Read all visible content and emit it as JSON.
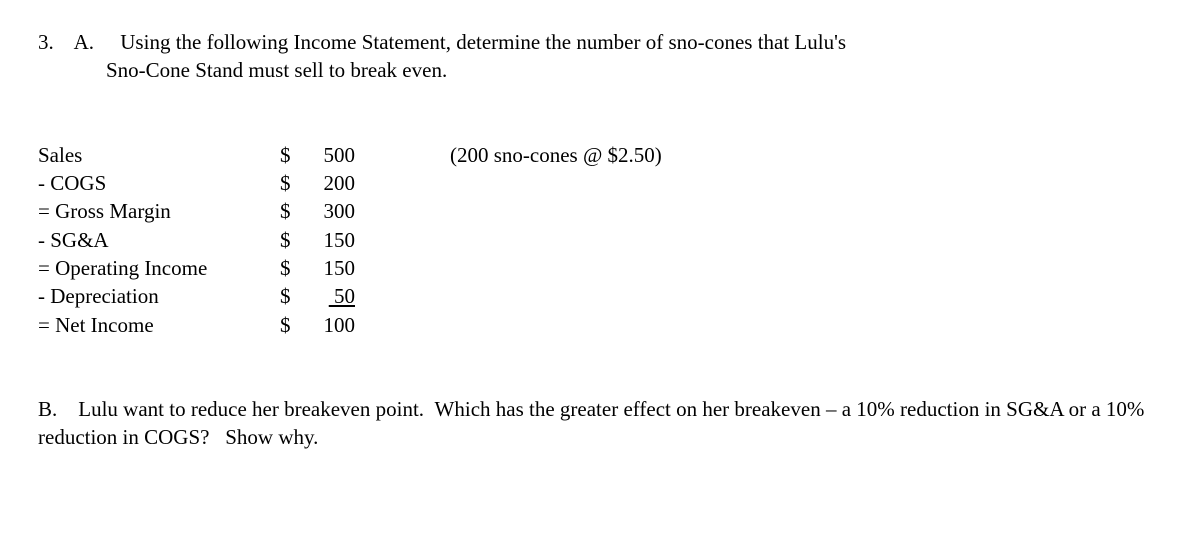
{
  "qa": {
    "number": "3.",
    "part": "A.",
    "text1": "Using the following Income Statement, determine the number of sno-cones that Lulu's",
    "text2": "Sno-Cone Stand must sell to break even."
  },
  "income_statement": {
    "rows": [
      {
        "label": "Sales",
        "currency": "$",
        "amount": "500",
        "note": "(200 sno-cones @ $2.50)",
        "underline": false
      },
      {
        "label": "- COGS",
        "currency": "$",
        "amount": "200",
        "note": "",
        "underline": false
      },
      {
        "label": "= Gross Margin",
        "currency": "$",
        "amount": "300",
        "note": "",
        "underline": false
      },
      {
        "label": "- SG&A",
        "currency": "$",
        "amount": "150",
        "note": "",
        "underline": false
      },
      {
        "label": "= Operating Income",
        "currency": "$",
        "amount": "150",
        "note": "",
        "underline": false
      },
      {
        "label": "- Depreciation",
        "currency": "$",
        "amount": "50",
        "note": "",
        "underline": true
      },
      {
        "label": "= Net Income",
        "currency": "$",
        "amount": "100",
        "note": "",
        "underline": false
      }
    ]
  },
  "qb": {
    "part": "B.",
    "text": "Lulu want to reduce her breakeven point.  Which has the greater effect on her breakeven – a 10% reduction in SG&A or a 10% reduction in COGS?   Show why."
  }
}
